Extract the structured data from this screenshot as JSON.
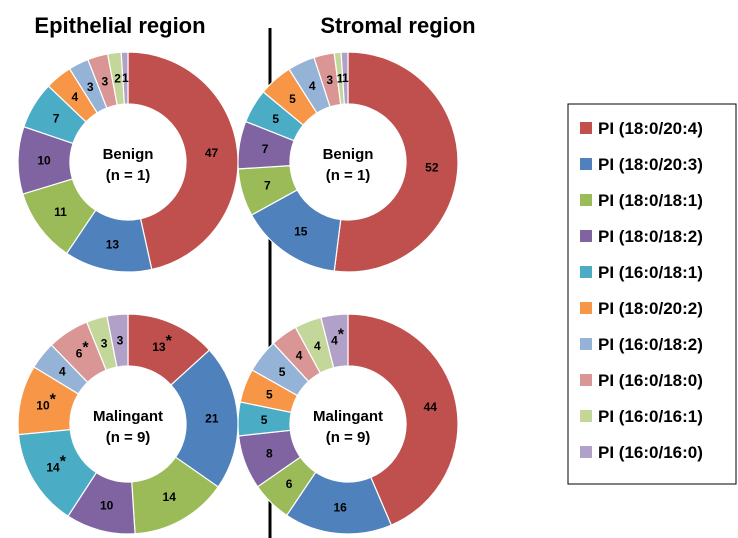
{
  "column_titles": [
    "Epithelial region",
    "Stromal region"
  ],
  "legend": {
    "items": [
      {
        "label": "PI (18:0/20:4)",
        "color": "#c0504d"
      },
      {
        "label": "PI (18:0/20:3)",
        "color": "#4f81bd"
      },
      {
        "label": "PI (18:0/18:1)",
        "color": "#9bbb59"
      },
      {
        "label": "PI (18:0/18:2)",
        "color": "#8064a2"
      },
      {
        "label": "PI (16:0/18:1)",
        "color": "#4bacc6"
      },
      {
        "label": "PI (18:0/20:2)",
        "color": "#f79646"
      },
      {
        "label": "PI (16:0/18:2)",
        "color": "#95b3d7"
      },
      {
        "label": "PI (16:0/18:0)",
        "color": "#da9694"
      },
      {
        "label": "PI (16:0/16:1)",
        "color": "#c4d79b"
      },
      {
        "label": "PI (16:0/16:0)",
        "color": "#b1a0c7"
      }
    ]
  },
  "chart_data": [
    {
      "type": "pie",
      "region": "Epithelial region",
      "center_label": "Benign",
      "center_n": "(n = 1)",
      "categories": [
        "PI (18:0/20:4)",
        "PI (18:0/20:3)",
        "PI (18:0/18:1)",
        "PI (18:0/18:2)",
        "PI (16:0/18:1)",
        "PI (18:0/20:2)",
        "PI (16:0/18:2)",
        "PI (16:0/18:0)",
        "PI (16:0/16:1)",
        "PI (16:0/16:0)"
      ],
      "values": [
        47,
        13,
        11,
        10,
        7,
        4,
        3,
        3,
        2,
        1
      ],
      "significant": [
        false,
        false,
        false,
        false,
        false,
        false,
        false,
        false,
        false,
        false
      ]
    },
    {
      "type": "pie",
      "region": "Stromal region",
      "center_label": "Benign",
      "center_n": "(n = 1)",
      "categories": [
        "PI (18:0/20:4)",
        "PI (18:0/20:3)",
        "PI (18:0/18:1)",
        "PI (18:0/18:2)",
        "PI (16:0/18:1)",
        "PI (18:0/20:2)",
        "PI (16:0/18:2)",
        "PI (16:0/18:0)",
        "PI (16:0/16:1)",
        "PI (16:0/16:0)"
      ],
      "values": [
        52,
        15,
        7,
        7,
        5,
        5,
        4,
        3,
        1,
        1
      ],
      "significant": [
        false,
        false,
        false,
        false,
        false,
        false,
        false,
        false,
        false,
        false
      ]
    },
    {
      "type": "pie",
      "region": "Epithelial region",
      "center_label": "Malingant",
      "center_n": "(n = 9)",
      "categories": [
        "PI (18:0/20:4)",
        "PI (18:0/20:3)",
        "PI (18:0/18:1)",
        "PI (18:0/18:2)",
        "PI (16:0/18:1)",
        "PI (18:0/20:2)",
        "PI (16:0/18:2)",
        "PI (16:0/18:0)",
        "PI (16:0/16:1)",
        "PI (16:0/16:0)"
      ],
      "values": [
        13,
        21,
        14,
        10,
        14,
        10,
        4,
        6,
        3,
        3
      ],
      "significant": [
        true,
        false,
        false,
        false,
        true,
        true,
        false,
        true,
        false,
        false
      ]
    },
    {
      "type": "pie",
      "region": "Stromal region",
      "center_label": "Malingant",
      "center_n": "(n = 9)",
      "categories": [
        "PI (18:0/20:4)",
        "PI (18:0/20:3)",
        "PI (18:0/18:1)",
        "PI (18:0/18:2)",
        "PI (16:0/18:1)",
        "PI (18:0/20:2)",
        "PI (16:0/18:2)",
        "PI (16:0/18:0)",
        "PI (16:0/16:1)",
        "PI (16:0/16:0)"
      ],
      "values": [
        44,
        16,
        6,
        8,
        5,
        5,
        5,
        4,
        4,
        4
      ],
      "significant": [
        false,
        false,
        false,
        false,
        false,
        false,
        false,
        false,
        false,
        true
      ]
    }
  ]
}
